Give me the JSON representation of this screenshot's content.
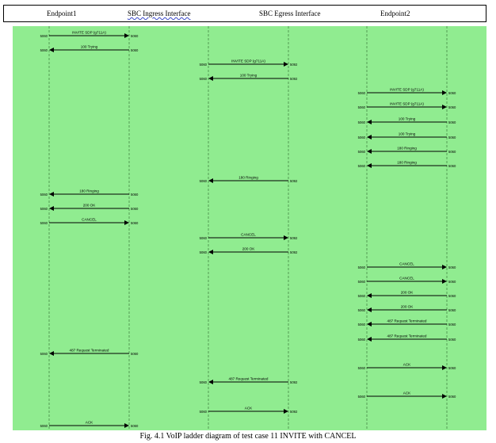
{
  "header": {
    "columns": [
      "Endpoint1",
      "SBC Ingress Interface",
      "SBC Egress Interface",
      "Endpoint2"
    ]
  },
  "caption": "Fig. 4.1  VoIP ladder diagram of test case 11 INVITE with CANCEL",
  "messages": [
    {
      "label": "INVITE SDP (g711A)",
      "from_port": "5060",
      "to_port": "5060",
      "lane": "ingress",
      "direction": "right"
    },
    {
      "label": "100 Trying",
      "from_port": "5060",
      "to_port": "5060",
      "lane": "ingress",
      "direction": "left"
    },
    {
      "label": "INVITE SDP (g711A)",
      "from_port": "5060",
      "to_port": "5092",
      "lane": "egress",
      "direction": "right"
    },
    {
      "label": "100 Trying",
      "from_port": "5060",
      "to_port": "5092",
      "lane": "egress",
      "direction": "left"
    },
    {
      "label": "INVITE SDP (g711A)",
      "from_port": "5060",
      "to_port": "5060",
      "lane": "endpoint2",
      "direction": "right"
    },
    {
      "label": "INVITE SDP (g711A)",
      "from_port": "5060",
      "to_port": "5060",
      "lane": "endpoint2",
      "direction": "right"
    },
    {
      "label": "100 Trying",
      "from_port": "5060",
      "to_port": "5060",
      "lane": "endpoint2",
      "direction": "left"
    },
    {
      "label": "100 Trying",
      "from_port": "5060",
      "to_port": "5060",
      "lane": "endpoint2",
      "direction": "left"
    },
    {
      "label": "180 Ringing",
      "from_port": "5060",
      "to_port": "5060",
      "lane": "endpoint2",
      "direction": "left"
    },
    {
      "label": "180 Ringing",
      "from_port": "5060",
      "to_port": "5060",
      "lane": "endpoint2",
      "direction": "left"
    },
    {
      "label": "180 Ringing",
      "from_port": "5060",
      "to_port": "5092",
      "lane": "egress",
      "direction": "left"
    },
    {
      "label": "180 Ringing",
      "from_port": "5060",
      "to_port": "5060",
      "lane": "ingress",
      "direction": "left"
    },
    {
      "label": "200 OK",
      "from_port": "5060",
      "to_port": "5060",
      "lane": "ingress",
      "direction": "left"
    },
    {
      "label": "CANCEL",
      "from_port": "5060",
      "to_port": "5060",
      "lane": "ingress",
      "direction": "right"
    },
    {
      "label": "CANCEL",
      "from_port": "5060",
      "to_port": "5092",
      "lane": "egress",
      "direction": "right"
    },
    {
      "label": "200 OK",
      "from_port": "5060",
      "to_port": "5092",
      "lane": "egress",
      "direction": "left"
    },
    {
      "label": "CANCEL",
      "from_port": "5060",
      "to_port": "5060",
      "lane": "endpoint2",
      "direction": "right"
    },
    {
      "label": "CANCEL",
      "from_port": "5060",
      "to_port": "5060",
      "lane": "endpoint2",
      "direction": "right"
    },
    {
      "label": "200 OK",
      "from_port": "5060",
      "to_port": "5060",
      "lane": "endpoint2",
      "direction": "left"
    },
    {
      "label": "200 OK",
      "from_port": "5060",
      "to_port": "5060",
      "lane": "endpoint2",
      "direction": "left"
    },
    {
      "label": "487 Request Terminated",
      "from_port": "5060",
      "to_port": "5060",
      "lane": "endpoint2",
      "direction": "left"
    },
    {
      "label": "487 Request Terminated",
      "from_port": "5060",
      "to_port": "5060",
      "lane": "endpoint2",
      "direction": "left"
    },
    {
      "label": "487 Request Terminated",
      "from_port": "5060",
      "to_port": "5060",
      "lane": "ingress",
      "direction": "left"
    },
    {
      "label": "ACK",
      "from_port": "5060",
      "to_port": "5060",
      "lane": "endpoint2",
      "direction": "right"
    },
    {
      "label": "487 Request Terminated",
      "from_port": "5060",
      "to_port": "5092",
      "lane": "egress",
      "direction": "left"
    },
    {
      "label": "ACK",
      "from_port": "5060",
      "to_port": "5060",
      "lane": "endpoint2",
      "direction": "right"
    },
    {
      "label": "ACK",
      "from_port": "5060",
      "to_port": "5092",
      "lane": "egress",
      "direction": "right"
    },
    {
      "label": "ACK",
      "from_port": "5060",
      "to_port": "5060",
      "lane": "ingress",
      "direction": "right"
    }
  ],
  "colors": {
    "background": "#90ec90",
    "lifeline": "#3a7a3a",
    "arrow": "#000000"
  }
}
